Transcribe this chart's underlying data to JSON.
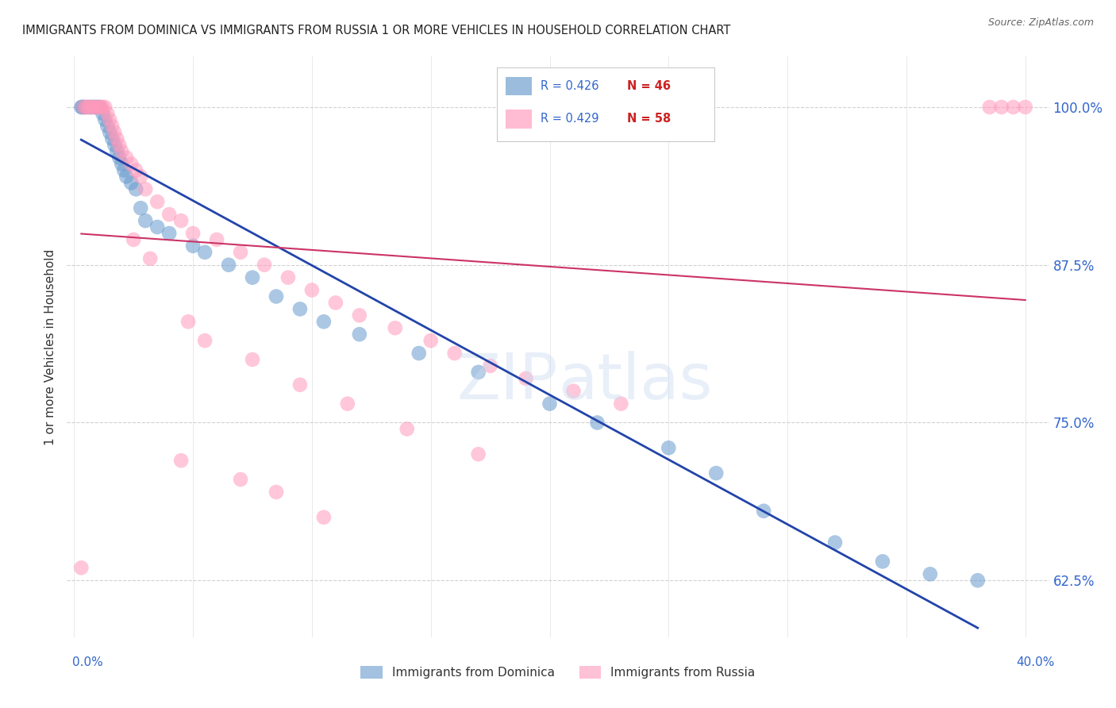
{
  "title": "IMMIGRANTS FROM DOMINICA VS IMMIGRANTS FROM RUSSIA 1 OR MORE VEHICLES IN HOUSEHOLD CORRELATION CHART",
  "source": "Source: ZipAtlas.com",
  "ylabel": "1 or more Vehicles in Household",
  "legend_dominica": "Immigrants from Dominica",
  "legend_russia": "Immigrants from Russia",
  "R_dominica": 0.426,
  "N_dominica": 46,
  "R_russia": 0.429,
  "N_russia": 58,
  "dominica_color": "#6699cc",
  "russia_color": "#ff99bb",
  "dominica_line_color": "#2244aa",
  "russia_line_color": "#cc3366",
  "background_color": "#ffffff",
  "grid_color": "#cccccc",
  "title_color": "#222222",
  "axis_label_color": "#3366cc",
  "xlim_min": -0.3,
  "xlim_max": 41.0,
  "ylim_min": 58.0,
  "ylim_max": 104.0,
  "yticks": [
    62.5,
    75.0,
    87.5,
    100.0
  ],
  "ytick_labels": [
    "62.5%",
    "75.0%",
    "87.5%",
    "100.0%"
  ],
  "dom_x": [
    0.4,
    0.5,
    0.6,
    0.7,
    0.8,
    0.9,
    1.0,
    1.1,
    1.2,
    1.3,
    1.4,
    1.5,
    1.6,
    1.7,
    1.8,
    1.9,
    2.0,
    2.1,
    2.2,
    2.4,
    2.6,
    2.8,
    3.0,
    3.5,
    4.0,
    5.0,
    5.5,
    6.5,
    7.5,
    8.5,
    9.5,
    10.5,
    12.0,
    14.5,
    17.0,
    20.0,
    22.0,
    25.0,
    27.0,
    29.0,
    32.0,
    34.0,
    36.0,
    38.0,
    0.3,
    0.35
  ],
  "dom_y": [
    100.0,
    100.0,
    100.0,
    100.0,
    100.0,
    100.0,
    100.0,
    100.0,
    99.5,
    99.0,
    98.5,
    98.0,
    97.5,
    97.0,
    96.5,
    96.0,
    95.5,
    95.0,
    94.5,
    94.0,
    93.5,
    92.0,
    91.0,
    90.5,
    90.0,
    89.0,
    88.5,
    87.5,
    86.5,
    85.0,
    84.0,
    83.0,
    82.0,
    80.5,
    79.0,
    76.5,
    75.0,
    73.0,
    71.0,
    68.0,
    65.5,
    64.0,
    63.0,
    62.5,
    100.0,
    100.0
  ],
  "rus_x": [
    0.3,
    0.4,
    0.5,
    0.6,
    0.7,
    0.8,
    0.9,
    1.0,
    1.1,
    1.2,
    1.3,
    1.4,
    1.5,
    1.6,
    1.7,
    1.8,
    1.9,
    2.0,
    2.2,
    2.4,
    2.6,
    2.8,
    3.0,
    3.5,
    4.0,
    4.5,
    5.0,
    6.0,
    7.0,
    8.0,
    9.0,
    10.0,
    11.0,
    12.0,
    13.5,
    15.0,
    16.0,
    17.5,
    19.0,
    21.0,
    23.0,
    38.5,
    39.0,
    39.5,
    40.0,
    2.5,
    3.2,
    4.8,
    5.5,
    7.5,
    9.5,
    11.5,
    14.0,
    17.0,
    4.5,
    7.0,
    8.5,
    10.5
  ],
  "rus_y": [
    63.5,
    100.0,
    100.0,
    100.0,
    100.0,
    100.0,
    100.0,
    100.0,
    100.0,
    100.0,
    100.0,
    99.5,
    99.0,
    98.5,
    98.0,
    97.5,
    97.0,
    96.5,
    96.0,
    95.5,
    95.0,
    94.5,
    93.5,
    92.5,
    91.5,
    91.0,
    90.0,
    89.5,
    88.5,
    87.5,
    86.5,
    85.5,
    84.5,
    83.5,
    82.5,
    81.5,
    80.5,
    79.5,
    78.5,
    77.5,
    76.5,
    100.0,
    100.0,
    100.0,
    100.0,
    89.5,
    88.0,
    83.0,
    81.5,
    80.0,
    78.0,
    76.5,
    74.5,
    72.5,
    72.0,
    70.5,
    69.5,
    67.5
  ]
}
